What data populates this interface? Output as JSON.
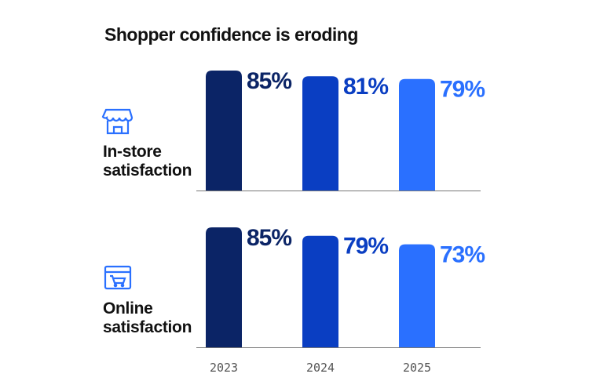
{
  "chart_data": {
    "type": "bar",
    "title": "Shopper confidence is eroding",
    "categories": [
      "2023",
      "2024",
      "2025"
    ],
    "colors": [
      "#0b2466",
      "#0a3ec2",
      "#2a70ff"
    ],
    "series": [
      {
        "name": "In-store satisfaction",
        "values": [
          85,
          81,
          79
        ],
        "value_labels": [
          "85%",
          "81%",
          "79%"
        ]
      },
      {
        "name": "Online satisfaction",
        "values": [
          85,
          79,
          73
        ],
        "value_labels": [
          "85%",
          "79%",
          "73%"
        ]
      }
    ]
  }
}
